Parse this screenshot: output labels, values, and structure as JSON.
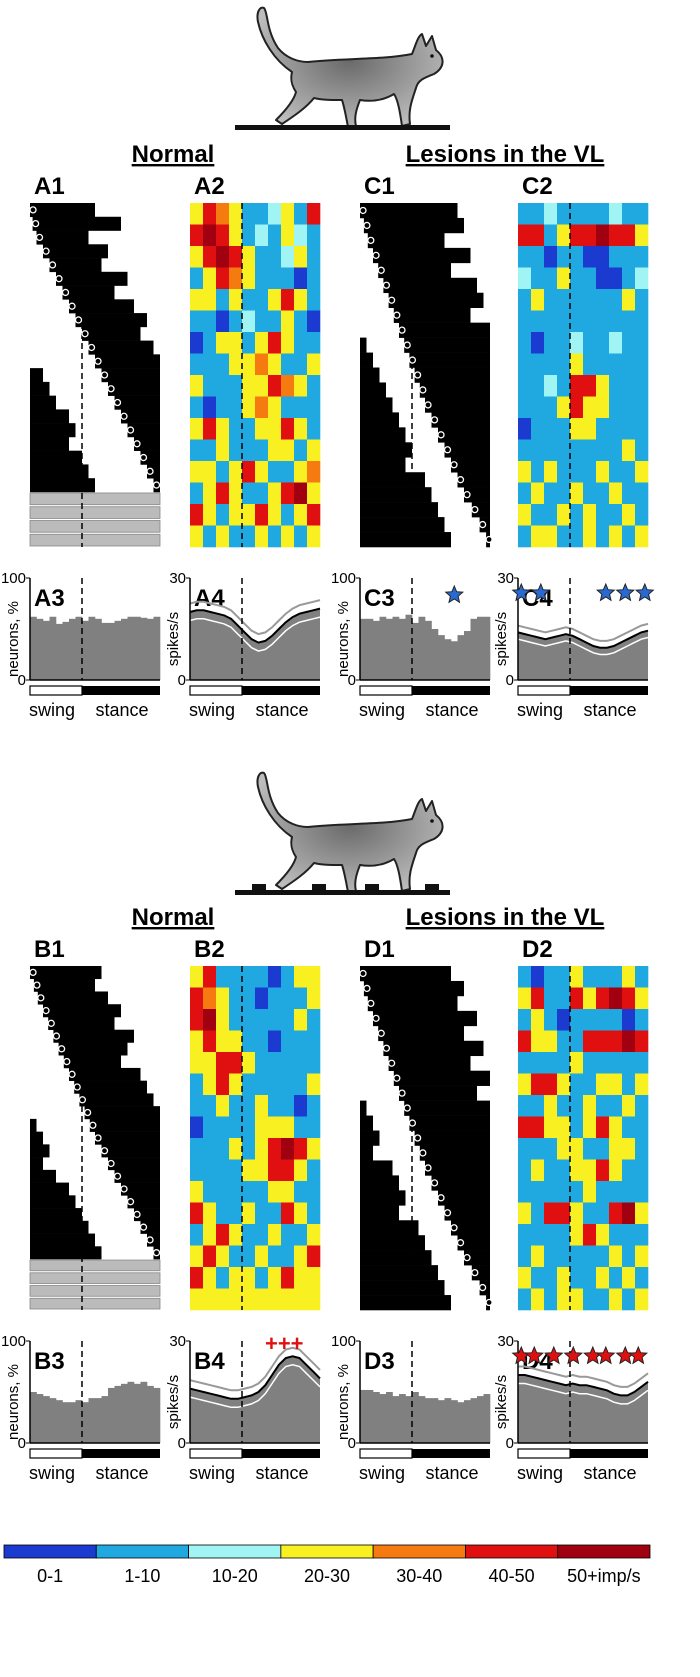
{
  "headers": {
    "normal": "Normal",
    "lesion": "Lesions in the VL"
  },
  "axis_titles": {
    "neurons": "neurons, %",
    "spikes": "spikes/s"
  },
  "phase": {
    "swing": "swing",
    "stance": "stance",
    "swing_end": 0.4
  },
  "hist_ylim": [
    0,
    100
  ],
  "hist_yticks": [
    0,
    100
  ],
  "hist_color": "#808080",
  "rate_ylim": [
    0,
    30
  ],
  "rate_yticks": [
    0,
    30
  ],
  "colorbar": {
    "labels": [
      "0-1",
      "1-10",
      "10-20",
      "20-30",
      "30-40",
      "40-50",
      "50+imp/s"
    ],
    "colors": [
      "#1a3ad0",
      "#20a8e0",
      "#a0f4f4",
      "#f8f020",
      "#f57a10",
      "#e01010",
      "#a00010"
    ]
  },
  "panels": [
    {
      "label": "A1",
      "kind": "raster",
      "unmodulated": 4,
      "rows": [
        [
          0,
          0.5
        ],
        [
          0.02,
          0.7
        ],
        [
          0.05,
          0.45
        ],
        [
          0.1,
          0.6
        ],
        [
          0.15,
          0.55
        ],
        [
          0.2,
          0.75
        ],
        [
          0.25,
          0.65
        ],
        [
          0.3,
          0.8
        ],
        [
          0.35,
          0.9
        ],
        [
          0.4,
          0.85
        ],
        [
          0.45,
          0.95
        ],
        [
          0.5,
          1.0
        ],
        [
          0.55,
          1.1
        ],
        [
          0.6,
          1.15
        ],
        [
          0.65,
          1.2
        ],
        [
          0.7,
          1.3
        ],
        [
          0.75,
          1.35
        ],
        [
          0.8,
          1.3
        ],
        [
          0.85,
          1.4
        ],
        [
          0.9,
          1.45
        ],
        [
          0.95,
          1.5
        ]
      ]
    },
    {
      "label": "A2",
      "kind": "heatmap",
      "levels": [
        [
          3,
          5,
          4,
          3,
          1,
          1,
          2,
          3,
          1,
          5
        ],
        [
          5,
          6,
          5,
          3,
          1,
          2,
          1,
          3,
          2,
          1
        ],
        [
          3,
          5,
          6,
          5,
          3,
          1,
          1,
          2,
          3,
          1
        ],
        [
          1,
          3,
          5,
          4,
          3,
          1,
          1,
          1,
          0,
          1
        ],
        [
          3,
          3,
          1,
          3,
          1,
          1,
          3,
          5,
          3,
          1
        ],
        [
          1,
          1,
          0,
          1,
          2,
          1,
          1,
          3,
          1,
          0
        ],
        [
          0,
          1,
          3,
          3,
          1,
          3,
          5,
          3,
          1,
          1
        ],
        [
          1,
          1,
          1,
          3,
          3,
          4,
          3,
          1,
          1,
          3
        ],
        [
          3,
          1,
          1,
          1,
          3,
          3,
          5,
          4,
          3,
          1
        ],
        [
          1,
          0,
          1,
          1,
          3,
          4,
          3,
          1,
          1,
          1
        ],
        [
          3,
          5,
          3,
          1,
          1,
          3,
          3,
          5,
          3,
          1
        ],
        [
          1,
          1,
          3,
          1,
          1,
          1,
          3,
          3,
          1,
          3
        ],
        [
          3,
          3,
          1,
          3,
          5,
          3,
          1,
          1,
          3,
          4
        ],
        [
          1,
          3,
          5,
          3,
          1,
          1,
          3,
          5,
          6,
          3
        ],
        [
          5,
          3,
          1,
          3,
          3,
          5,
          3,
          1,
          3,
          5
        ],
        [
          3,
          1,
          3,
          1,
          1,
          3,
          1,
          3,
          1,
          3
        ]
      ]
    },
    {
      "label": "C1",
      "kind": "raster",
      "unmodulated": 0,
      "rows": [
        [
          0,
          0.75
        ],
        [
          0.03,
          0.8
        ],
        [
          0.06,
          0.65
        ],
        [
          0.1,
          0.85
        ],
        [
          0.14,
          0.7
        ],
        [
          0.18,
          0.9
        ],
        [
          0.22,
          0.95
        ],
        [
          0.26,
          0.85
        ],
        [
          0.3,
          1.0
        ],
        [
          0.34,
          1.05
        ],
        [
          0.38,
          1.1
        ],
        [
          0.42,
          1.15
        ],
        [
          0.46,
          1.2
        ],
        [
          0.5,
          1.25
        ],
        [
          0.55,
          1.3
        ],
        [
          0.6,
          1.35
        ],
        [
          0.65,
          1.4
        ],
        [
          0.7,
          1.35
        ],
        [
          0.75,
          1.5
        ],
        [
          0.8,
          1.55
        ],
        [
          0.86,
          1.6
        ],
        [
          0.92,
          1.65
        ],
        [
          0.97,
          1.7
        ]
      ]
    },
    {
      "label": "C2",
      "kind": "heatmap",
      "levels": [
        [
          1,
          1,
          2,
          1,
          1,
          1,
          1,
          2,
          1,
          1
        ],
        [
          5,
          5,
          1,
          3,
          5,
          5,
          6,
          5,
          5,
          3
        ],
        [
          1,
          1,
          0,
          1,
          1,
          0,
          0,
          1,
          1,
          1
        ],
        [
          2,
          1,
          1,
          3,
          1,
          1,
          0,
          0,
          1,
          2
        ],
        [
          1,
          3,
          1,
          1,
          1,
          1,
          1,
          1,
          3,
          1
        ],
        [
          1,
          1,
          1,
          1,
          1,
          1,
          1,
          1,
          1,
          1
        ],
        [
          1,
          0,
          1,
          1,
          2,
          1,
          1,
          2,
          1,
          1
        ],
        [
          1,
          1,
          1,
          1,
          3,
          1,
          1,
          1,
          1,
          1
        ],
        [
          1,
          1,
          2,
          1,
          5,
          5,
          3,
          1,
          1,
          1
        ],
        [
          1,
          1,
          1,
          3,
          5,
          3,
          3,
          1,
          1,
          1
        ],
        [
          0,
          1,
          1,
          1,
          3,
          3,
          1,
          1,
          1,
          1
        ],
        [
          1,
          1,
          1,
          1,
          1,
          1,
          1,
          1,
          3,
          1
        ],
        [
          3,
          1,
          3,
          1,
          1,
          1,
          3,
          1,
          1,
          3
        ],
        [
          1,
          3,
          1,
          1,
          3,
          1,
          1,
          3,
          1,
          1
        ],
        [
          3,
          1,
          1,
          3,
          1,
          3,
          1,
          1,
          3,
          1
        ],
        [
          1,
          3,
          3,
          1,
          1,
          3,
          1,
          3,
          1,
          3
        ]
      ]
    },
    {
      "label": "A3",
      "kind": "hist",
      "values": [
        62,
        60,
        58,
        62,
        55,
        57,
        60,
        62,
        58,
        62,
        60,
        56,
        56,
        58,
        60,
        62,
        62,
        61,
        60,
        62
      ]
    },
    {
      "label": "A4",
      "kind": "rate",
      "mean": [
        20,
        20.5,
        20.5,
        20,
        19.5,
        19,
        18,
        16,
        14,
        12,
        11,
        11.5,
        13,
        15,
        17,
        18.5,
        19.5,
        20,
        20.5,
        21
      ],
      "sd": 2.5
    },
    {
      "label": "C3",
      "kind": "hist",
      "values": [
        60,
        60,
        58,
        62,
        60,
        62,
        60,
        64,
        56,
        62,
        58,
        50,
        44,
        40,
        38,
        44,
        48,
        60,
        62,
        62
      ],
      "significant_bins": [
        14
      ],
      "star_color": "#2a6ad0"
    },
    {
      "label": "C4",
      "kind": "rate",
      "mean": [
        14,
        13.5,
        13,
        12.5,
        12,
        12.5,
        13,
        13.5,
        13,
        12,
        11,
        10,
        9.5,
        9.5,
        10,
        11,
        12,
        13,
        14,
        14.5
      ],
      "sd": 2,
      "significant_bins": [
        0,
        3,
        13,
        16,
        19
      ],
      "star_color": "#2a6ad0"
    },
    {
      "label": "B1",
      "kind": "raster",
      "unmodulated": 4,
      "rows": [
        [
          0,
          0.55
        ],
        [
          0.03,
          0.5
        ],
        [
          0.06,
          0.6
        ],
        [
          0.1,
          0.7
        ],
        [
          0.14,
          0.65
        ],
        [
          0.18,
          0.8
        ],
        [
          0.22,
          0.75
        ],
        [
          0.26,
          0.7
        ],
        [
          0.3,
          0.85
        ],
        [
          0.34,
          0.9
        ],
        [
          0.38,
          0.95
        ],
        [
          0.42,
          1.0
        ],
        [
          0.46,
          1.05
        ],
        [
          0.5,
          1.1
        ],
        [
          0.55,
          1.15
        ],
        [
          0.6,
          1.1
        ],
        [
          0.65,
          1.2
        ],
        [
          0.7,
          1.3
        ],
        [
          0.75,
          1.35
        ],
        [
          0.8,
          1.4
        ],
        [
          0.85,
          1.45
        ],
        [
          0.9,
          1.5
        ],
        [
          0.95,
          1.55
        ]
      ]
    },
    {
      "label": "B2",
      "kind": "heatmap",
      "levels": [
        [
          3,
          5,
          1,
          1,
          1,
          1,
          0,
          1,
          3,
          3
        ],
        [
          5,
          4,
          3,
          1,
          1,
          0,
          1,
          1,
          1,
          3
        ],
        [
          5,
          6,
          3,
          1,
          1,
          1,
          1,
          1,
          3,
          1
        ],
        [
          3,
          5,
          3,
          3,
          1,
          1,
          0,
          1,
          1,
          1
        ],
        [
          3,
          3,
          5,
          5,
          3,
          1,
          1,
          1,
          1,
          1
        ],
        [
          1,
          3,
          5,
          3,
          1,
          1,
          1,
          1,
          1,
          3
        ],
        [
          1,
          1,
          3,
          1,
          1,
          3,
          1,
          1,
          0,
          1
        ],
        [
          0,
          1,
          1,
          1,
          1,
          3,
          3,
          3,
          1,
          1
        ],
        [
          1,
          1,
          1,
          3,
          1,
          3,
          5,
          6,
          5,
          3
        ],
        [
          1,
          1,
          1,
          1,
          3,
          3,
          5,
          5,
          3,
          1
        ],
        [
          3,
          1,
          1,
          1,
          1,
          1,
          3,
          3,
          1,
          1
        ],
        [
          5,
          3,
          1,
          1,
          3,
          1,
          1,
          5,
          3,
          1
        ],
        [
          1,
          3,
          5,
          3,
          1,
          1,
          3,
          1,
          1,
          3
        ],
        [
          3,
          5,
          3,
          1,
          1,
          3,
          1,
          1,
          3,
          5
        ],
        [
          5,
          3,
          1,
          3,
          3,
          1,
          3,
          5,
          3,
          3
        ],
        [
          3,
          3,
          3,
          3,
          3,
          3,
          3,
          3,
          3,
          3
        ]
      ]
    },
    {
      "label": "D1",
      "kind": "raster",
      "unmodulated": 0,
      "rows": [
        [
          0,
          0.7
        ],
        [
          0.03,
          0.8
        ],
        [
          0.06,
          0.75
        ],
        [
          0.1,
          0.9
        ],
        [
          0.14,
          0.8
        ],
        [
          0.18,
          0.95
        ],
        [
          0.22,
          0.85
        ],
        [
          0.26,
          1.0
        ],
        [
          0.3,
          0.9
        ],
        [
          0.34,
          1.05
        ],
        [
          0.38,
          1.1
        ],
        [
          0.42,
          1.15
        ],
        [
          0.46,
          1.1
        ],
        [
          0.5,
          1.25
        ],
        [
          0.55,
          1.3
        ],
        [
          0.6,
          1.35
        ],
        [
          0.65,
          1.3
        ],
        [
          0.7,
          1.45
        ],
        [
          0.75,
          1.5
        ],
        [
          0.8,
          1.55
        ],
        [
          0.86,
          1.6
        ],
        [
          0.92,
          1.65
        ],
        [
          0.97,
          1.7
        ]
      ]
    },
    {
      "label": "D2",
      "kind": "heatmap",
      "levels": [
        [
          1,
          0,
          1,
          1,
          3,
          1,
          1,
          1,
          3,
          1
        ],
        [
          3,
          5,
          1,
          1,
          5,
          3,
          5,
          6,
          5,
          3
        ],
        [
          1,
          3,
          1,
          0,
          1,
          1,
          1,
          1,
          0,
          1
        ],
        [
          5,
          3,
          3,
          1,
          1,
          5,
          5,
          5,
          6,
          5
        ],
        [
          1,
          1,
          1,
          1,
          3,
          1,
          1,
          1,
          1,
          1
        ],
        [
          3,
          5,
          5,
          3,
          1,
          1,
          3,
          3,
          1,
          3
        ],
        [
          1,
          1,
          3,
          1,
          1,
          3,
          1,
          1,
          3,
          1
        ],
        [
          5,
          5,
          3,
          3,
          1,
          3,
          5,
          3,
          1,
          1
        ],
        [
          1,
          1,
          1,
          3,
          3,
          1,
          1,
          3,
          3,
          1
        ],
        [
          1,
          3,
          1,
          1,
          3,
          3,
          5,
          3,
          1,
          1
        ],
        [
          1,
          1,
          1,
          1,
          1,
          3,
          1,
          1,
          1,
          1
        ],
        [
          3,
          1,
          5,
          5,
          3,
          1,
          1,
          5,
          6,
          3
        ],
        [
          1,
          1,
          1,
          1,
          3,
          5,
          3,
          1,
          1,
          1
        ],
        [
          1,
          3,
          1,
          1,
          1,
          1,
          1,
          3,
          1,
          3
        ],
        [
          3,
          1,
          1,
          3,
          1,
          1,
          3,
          1,
          3,
          1
        ],
        [
          1,
          3,
          1,
          3,
          3,
          1,
          1,
          3,
          1,
          3
        ]
      ]
    },
    {
      "label": "B3",
      "kind": "hist",
      "values": [
        50,
        48,
        46,
        44,
        42,
        40,
        40,
        42,
        40,
        44,
        44,
        46,
        54,
        56,
        58,
        60,
        58,
        60,
        56,
        54
      ]
    },
    {
      "label": "B4",
      "kind": "rate",
      "mean": [
        16,
        15.5,
        15,
        14.5,
        14,
        13.5,
        13,
        13,
        13.5,
        14,
        15,
        17,
        20,
        23,
        25,
        25.5,
        25,
        23,
        21,
        19
      ],
      "sd": 2.5,
      "significant_bins": [
        13,
        14,
        15
      ],
      "significance_label": "+++",
      "star_color": "#e01010"
    },
    {
      "label": "D3",
      "kind": "hist",
      "values": [
        52,
        52,
        50,
        48,
        50,
        46,
        48,
        46,
        50,
        46,
        44,
        44,
        42,
        44,
        42,
        40,
        42,
        44,
        46,
        48
      ]
    },
    {
      "label": "D4",
      "kind": "rate",
      "mean": [
        20,
        20,
        19.5,
        19,
        18.5,
        18,
        17.5,
        17,
        17.5,
        17,
        17,
        16.5,
        16,
        15.5,
        14.5,
        14,
        14,
        15,
        16.5,
        18
      ],
      "sd": 2.5,
      "significant_bins": [
        0,
        2,
        5,
        8,
        11,
        13,
        16,
        18
      ],
      "star_color": "#e01010"
    }
  ]
}
